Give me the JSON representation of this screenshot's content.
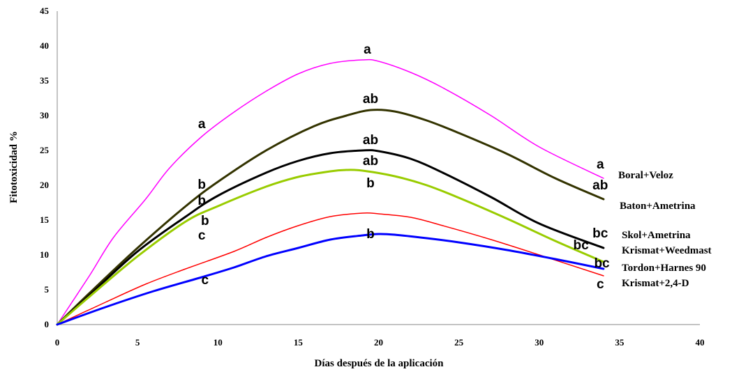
{
  "chart_data": {
    "type": "line",
    "xlabel": "Días después de la aplicación",
    "ylabel": "Fitotoxicidad %",
    "xlim": [
      0,
      40
    ],
    "ylim": [
      0,
      45
    ],
    "xticks": [
      0,
      5,
      10,
      15,
      20,
      25,
      30,
      35,
      40
    ],
    "yticks": [
      0,
      5,
      10,
      15,
      20,
      25,
      30,
      35,
      40,
      45
    ],
    "grid": false,
    "legend": "none",
    "series": [
      {
        "name": "Boral+Veloz",
        "color": "#ff00ff",
        "stroke_width": 1.5,
        "points": [
          [
            0,
            0
          ],
          [
            2,
            7
          ],
          [
            3.5,
            12.5
          ],
          [
            5.5,
            18
          ],
          [
            7,
            22.5
          ],
          [
            9,
            27
          ],
          [
            11,
            30.5
          ],
          [
            13,
            33.5
          ],
          [
            15,
            36
          ],
          [
            17,
            37.5
          ],
          [
            19,
            38
          ],
          [
            20,
            37.8
          ],
          [
            22,
            36.2
          ],
          [
            24,
            34
          ],
          [
            27,
            30
          ],
          [
            30,
            25.5
          ],
          [
            34,
            21
          ]
        ],
        "annotations": [
          {
            "x": 9,
            "y": 28.2,
            "text": "a"
          },
          {
            "x": 19.3,
            "y": 38.9,
            "text": "a"
          },
          {
            "x": 33.8,
            "y": 22.4,
            "text": "a"
          }
        ]
      },
      {
        "name": "Baton+Ametrina",
        "color": "#333300",
        "stroke_width": 3,
        "points": [
          [
            0,
            0
          ],
          [
            2,
            4.5
          ],
          [
            5,
            11
          ],
          [
            8,
            17
          ],
          [
            10,
            20.5
          ],
          [
            13,
            25
          ],
          [
            16,
            28.5
          ],
          [
            18,
            30
          ],
          [
            19.5,
            30.8
          ],
          [
            21,
            30.6
          ],
          [
            23,
            29.3
          ],
          [
            25,
            27.5
          ],
          [
            28,
            24.5
          ],
          [
            31,
            21
          ],
          [
            34,
            18
          ]
        ],
        "annotations": [
          {
            "x": 9,
            "y": 19.5,
            "text": "b"
          },
          {
            "x": 19.5,
            "y": 31.8,
            "text": "ab"
          },
          {
            "x": 33.8,
            "y": 19.4,
            "text": "ab"
          }
        ]
      },
      {
        "name": "Skol+Ametrina",
        "color": "#000000",
        "stroke_width": 3,
        "points": [
          [
            0,
            0
          ],
          [
            2,
            4.2
          ],
          [
            5,
            10.5
          ],
          [
            8,
            15.5
          ],
          [
            10,
            18.5
          ],
          [
            13,
            21.8
          ],
          [
            15,
            23.5
          ],
          [
            17,
            24.6
          ],
          [
            19,
            25
          ],
          [
            20,
            24.9
          ],
          [
            22,
            23.8
          ],
          [
            24,
            21.8
          ],
          [
            27,
            18.3
          ],
          [
            30,
            14.5
          ],
          [
            34,
            11
          ]
        ],
        "annotations": [
          {
            "x": 9,
            "y": 17.2,
            "text": "b"
          },
          {
            "x": 19.5,
            "y": 25.9,
            "text": "ab"
          },
          {
            "x": 33.8,
            "y": 12.5,
            "text": "bc"
          }
        ]
      },
      {
        "name": "Krismat+Weedmast",
        "color": "#99cc00",
        "stroke_width": 3,
        "points": [
          [
            0,
            0
          ],
          [
            2,
            4
          ],
          [
            5,
            9.8
          ],
          [
            8,
            14.8
          ],
          [
            10,
            17
          ],
          [
            13,
            19.8
          ],
          [
            15,
            21.2
          ],
          [
            17,
            22
          ],
          [
            18,
            22.2
          ],
          [
            19,
            22.1
          ],
          [
            21,
            21.3
          ],
          [
            23,
            20
          ],
          [
            25,
            18.2
          ],
          [
            28,
            15.2
          ],
          [
            31,
            12
          ],
          [
            34,
            9
          ]
        ],
        "annotations": [
          {
            "x": 9.2,
            "y": 14.3,
            "text": "b"
          },
          {
            "x": 19.5,
            "y": 22.9,
            "text": "ab"
          },
          {
            "x": 19.5,
            "y": 19.7,
            "text": "b"
          },
          {
            "x": 32.6,
            "y": 10.8,
            "text": "bc"
          }
        ]
      },
      {
        "name": "Tordon+Harnes 90",
        "color": "#ff0000",
        "stroke_width": 1.5,
        "points": [
          [
            0,
            0
          ],
          [
            3,
            3.2
          ],
          [
            5.5,
            5.8
          ],
          [
            8,
            8
          ],
          [
            11,
            10.5
          ],
          [
            13,
            12.5
          ],
          [
            15,
            14.2
          ],
          [
            17,
            15.5
          ],
          [
            19,
            16
          ],
          [
            20,
            15.9
          ],
          [
            22,
            15.4
          ],
          [
            24,
            14.2
          ],
          [
            27,
            12.2
          ],
          [
            30,
            10
          ],
          [
            34,
            7
          ]
        ],
        "annotations": [
          {
            "x": 9,
            "y": 12.2,
            "text": "c"
          },
          {
            "x": 33.8,
            "y": 5.2,
            "text": "c"
          }
        ]
      },
      {
        "name": "Krismat+2,4-D",
        "color": "#0000ff",
        "stroke_width": 3,
        "points": [
          [
            0,
            0
          ],
          [
            3,
            2.5
          ],
          [
            6,
            4.8
          ],
          [
            9,
            6.8
          ],
          [
            11,
            8.2
          ],
          [
            13,
            9.8
          ],
          [
            15,
            11
          ],
          [
            17,
            12.2
          ],
          [
            19,
            12.8
          ],
          [
            20,
            13
          ],
          [
            21,
            12.9
          ],
          [
            23,
            12.4
          ],
          [
            25,
            11.8
          ],
          [
            28,
            10.7
          ],
          [
            31,
            9.4
          ],
          [
            34,
            8
          ]
        ],
        "annotations": [
          {
            "x": 9.2,
            "y": 5.8,
            "text": "c"
          },
          {
            "x": 19.5,
            "y": 12.4,
            "text": "b"
          },
          {
            "x": 33.9,
            "y": 8.2,
            "text": "bc"
          }
        ]
      }
    ]
  }
}
